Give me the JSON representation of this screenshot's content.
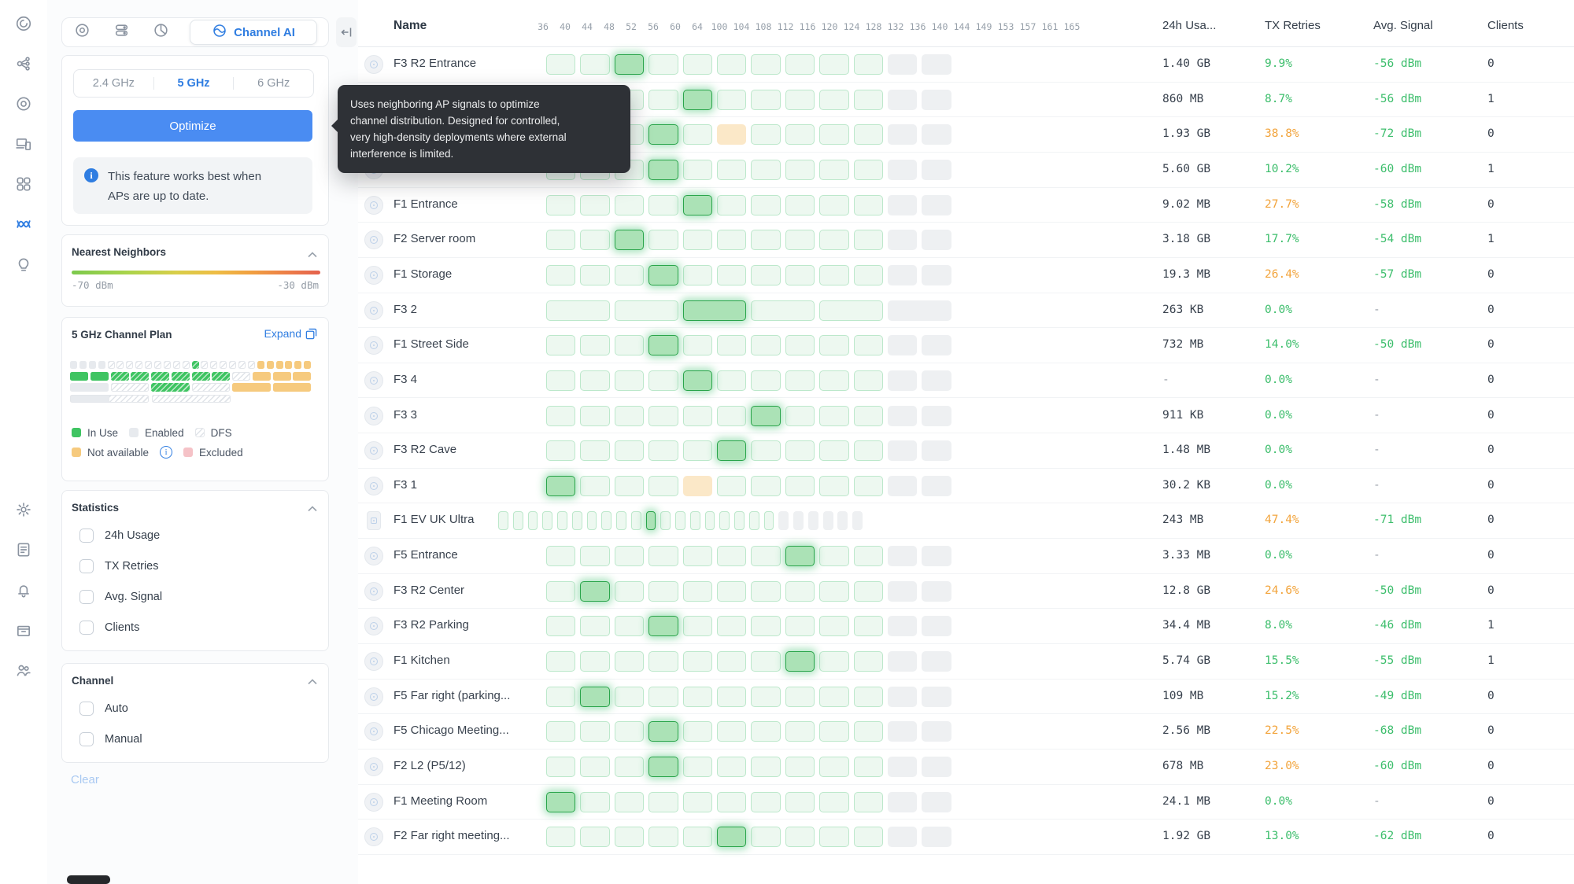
{
  "colors": {
    "accent": "#2f7de1",
    "optimize_button": "#4a8cf2",
    "green_text": "#3dbe6c",
    "orange_text": "#f2a43c",
    "cell_highlight_border": "#2aa54b",
    "cell_green_bg": "#edf8f0",
    "cell_gray_bg": "#eef0f2",
    "cell_orange_bg": "#fbe8c8",
    "tooltip_bg": "#2e3136"
  },
  "rail": {
    "top_icons": [
      "unifi-logo",
      "topology",
      "radio",
      "devices",
      "aps",
      "insights-wave",
      "lightbulb"
    ],
    "active_icon": "insights-wave",
    "bottom_icons": [
      "gear",
      "log-list",
      "bell",
      "archive-box",
      "people"
    ]
  },
  "sidebar": {
    "tabs": {
      "inactive_icons": [
        "target",
        "ap-list",
        "pie-chart"
      ],
      "active": {
        "icon": "channel-ai",
        "label": "Channel AI"
      }
    },
    "bands": [
      "2.4 GHz",
      "5 GHz",
      "6 GHz"
    ],
    "active_band": "5 GHz",
    "optimize_label": "Optimize",
    "info_lines": [
      "This feature works best when",
      "APs are up to date."
    ],
    "nearest_neighbors": {
      "title": "Nearest Neighbors",
      "min": "-70 dBm",
      "max": "-30 dBm"
    },
    "channel_plan": {
      "title": "5 GHz Channel Plan",
      "expand_label": "Expand",
      "rows": [
        [
          "en",
          "en",
          "en",
          "en",
          "hatch",
          "hatch",
          "hatch",
          "hatch",
          "hatch",
          "hatch",
          "hatch",
          "hatch",
          "hatch",
          "useh",
          "hatch",
          "hatch",
          "hatch",
          "hatch",
          "hatch",
          "hatch",
          "na",
          "na",
          "na",
          "na",
          "na",
          "na"
        ],
        [
          "use",
          "use",
          "useh",
          "useh",
          "useh",
          "useh",
          "useh",
          "useh",
          "hatch",
          "na",
          "na",
          "na"
        ],
        [
          "en",
          "hatch",
          "useh",
          "hatch",
          "na",
          "na"
        ],
        [
          "mixed",
          "hatch"
        ]
      ],
      "legend": [
        [
          {
            "type": "use",
            "label": "In Use"
          },
          {
            "type": "en",
            "label": "Enabled"
          },
          {
            "type": "hatch",
            "label": "DFS"
          }
        ],
        [
          {
            "type": "na",
            "label": "Not available",
            "info": true
          },
          {
            "type": "ex",
            "label": "Excluded"
          }
        ]
      ]
    },
    "statistics": {
      "title": "Statistics",
      "options": [
        "24h Usage",
        "TX Retries",
        "Avg. Signal",
        "Clients"
      ],
      "checked": [
        false,
        false,
        false,
        false
      ]
    },
    "channel": {
      "title": "Channel",
      "options": [
        "Auto",
        "Manual"
      ],
      "checked": [
        false,
        false
      ]
    },
    "clear_label": "Clear"
  },
  "tooltip": {
    "lines": [
      "Uses neighboring AP signals to optimize",
      "channel distribution. Designed for controlled,",
      "very high-density deployments where external",
      "interference is limited."
    ]
  },
  "table": {
    "name_header": "Name",
    "channels": [
      36,
      40,
      44,
      48,
      52,
      56,
      60,
      64,
      100,
      104,
      108,
      112,
      116,
      120,
      124,
      128,
      132,
      136,
      140,
      144,
      149,
      153,
      157,
      161,
      165
    ],
    "col_headers": [
      "24h Usa...",
      "TX Retries",
      "Avg. Signal",
      "Clients"
    ],
    "rows": [
      {
        "name": "F3 R2 Entrance",
        "icon": "circle",
        "cell_width_mhz": 40,
        "highlight_index": 2,
        "orange_index": null,
        "usage": "1.40 GB",
        "tx": "9.9%",
        "tx_color": "g",
        "signal": "-56 dBm",
        "clients": "0"
      },
      {
        "name": "",
        "icon": "circle",
        "cell_width_mhz": 40,
        "highlight_index": 4,
        "orange_index": null,
        "usage": "860 MB",
        "tx": "8.7%",
        "tx_color": "g",
        "signal": "-56 dBm",
        "clients": "1"
      },
      {
        "name": "",
        "icon": "circle",
        "cell_width_mhz": 40,
        "highlight_index": 3,
        "orange_index": 5,
        "usage": "1.93 GB",
        "tx": "38.8%",
        "tx_color": "o",
        "signal": "-72 dBm",
        "clients": "0"
      },
      {
        "name": "F2 Entrance",
        "icon": "circle",
        "cell_width_mhz": 40,
        "highlight_index": 3,
        "orange_index": null,
        "usage": "5.60 GB",
        "tx": "10.2%",
        "tx_color": "g",
        "signal": "-60 dBm",
        "clients": "1"
      },
      {
        "name": "F1 Entrance",
        "icon": "circle",
        "cell_width_mhz": 40,
        "highlight_index": 4,
        "orange_index": null,
        "usage": "9.02 MB",
        "tx": "27.7%",
        "tx_color": "o",
        "signal": "-58 dBm",
        "clients": "0"
      },
      {
        "name": "F2 Server room",
        "icon": "circle",
        "cell_width_mhz": 40,
        "highlight_index": 2,
        "orange_index": null,
        "usage": "3.18 GB",
        "tx": "17.7%",
        "tx_color": "g",
        "signal": "-54 dBm",
        "clients": "1"
      },
      {
        "name": "F1 Storage",
        "icon": "circle",
        "cell_width_mhz": 40,
        "highlight_index": 3,
        "orange_index": null,
        "usage": "19.3 MB",
        "tx": "26.4%",
        "tx_color": "o",
        "signal": "-57 dBm",
        "clients": "0"
      },
      {
        "name": "F3 2",
        "icon": "circle",
        "cell_width_mhz": 80,
        "highlight_index": 2,
        "orange_index": null,
        "usage": "263 KB",
        "tx": "0.0%",
        "tx_color": "g",
        "signal": "-",
        "clients": "0"
      },
      {
        "name": "F1 Street Side",
        "icon": "circle",
        "cell_width_mhz": 40,
        "highlight_index": 3,
        "orange_index": null,
        "usage": "732 MB",
        "tx": "14.0%",
        "tx_color": "g",
        "signal": "-50 dBm",
        "clients": "0"
      },
      {
        "name": "F3 4",
        "icon": "circle",
        "cell_width_mhz": 40,
        "highlight_index": 4,
        "orange_index": null,
        "usage": "-",
        "tx": "0.0%",
        "tx_color": "g",
        "signal": "-",
        "clients": "0"
      },
      {
        "name": "F3 3",
        "icon": "circle",
        "cell_width_mhz": 40,
        "highlight_index": 6,
        "orange_index": null,
        "usage": "911 KB",
        "tx": "0.0%",
        "tx_color": "g",
        "signal": "-",
        "clients": "0"
      },
      {
        "name": "F3 R2 Cave",
        "icon": "circle",
        "cell_width_mhz": 40,
        "highlight_index": 5,
        "orange_index": null,
        "usage": "1.48 MB",
        "tx": "0.0%",
        "tx_color": "g",
        "signal": "-",
        "clients": "0"
      },
      {
        "name": "F3 1",
        "icon": "circle",
        "cell_width_mhz": 40,
        "highlight_index": 0,
        "orange_index": 4,
        "usage": "30.2 KB",
        "tx": "0.0%",
        "tx_color": "g",
        "signal": "-",
        "clients": "0"
      },
      {
        "name": "F1 EV UK Ultra",
        "icon": "rect",
        "cell_width_mhz": 20,
        "highlight_index": 10,
        "orange_index": null,
        "usage": "243 MB",
        "tx": "47.4%",
        "tx_color": "o",
        "signal": "-71 dBm",
        "clients": "0"
      },
      {
        "name": "F5 Entrance",
        "icon": "circle",
        "cell_width_mhz": 40,
        "highlight_index": 7,
        "orange_index": null,
        "usage": "3.33 MB",
        "tx": "0.0%",
        "tx_color": "g",
        "signal": "-",
        "clients": "0"
      },
      {
        "name": "F3 R2 Center",
        "icon": "circle",
        "cell_width_mhz": 40,
        "highlight_index": 1,
        "orange_index": null,
        "usage": "12.8 GB",
        "tx": "24.6%",
        "tx_color": "o",
        "signal": "-50 dBm",
        "clients": "0"
      },
      {
        "name": "F3 R2 Parking",
        "icon": "circle",
        "cell_width_mhz": 40,
        "highlight_index": 3,
        "orange_index": null,
        "usage": "34.4 MB",
        "tx": "8.0%",
        "tx_color": "g",
        "signal": "-46 dBm",
        "clients": "1"
      },
      {
        "name": "F1 Kitchen",
        "icon": "circle",
        "cell_width_mhz": 40,
        "highlight_index": 7,
        "orange_index": null,
        "usage": "5.74 GB",
        "tx": "15.5%",
        "tx_color": "g",
        "signal": "-55 dBm",
        "clients": "1"
      },
      {
        "name": "F5 Far right (parking...",
        "icon": "circle",
        "cell_width_mhz": 40,
        "highlight_index": 1,
        "orange_index": null,
        "usage": "109 MB",
        "tx": "15.2%",
        "tx_color": "g",
        "signal": "-49 dBm",
        "clients": "0"
      },
      {
        "name": "F5 Chicago Meeting...",
        "icon": "circle",
        "cell_width_mhz": 40,
        "highlight_index": 3,
        "orange_index": null,
        "usage": "2.56 MB",
        "tx": "22.5%",
        "tx_color": "o",
        "signal": "-68 dBm",
        "clients": "0"
      },
      {
        "name": "F2 L2 (P5/12)",
        "icon": "circle",
        "cell_width_mhz": 40,
        "highlight_index": 3,
        "orange_index": null,
        "usage": "678 MB",
        "tx": "23.0%",
        "tx_color": "o",
        "signal": "-60 dBm",
        "clients": "0"
      },
      {
        "name": "F1 Meeting Room",
        "icon": "circle",
        "cell_width_mhz": 40,
        "highlight_index": 0,
        "orange_index": null,
        "usage": "24.1 MB",
        "tx": "0.0%",
        "tx_color": "g",
        "signal": "-",
        "clients": "0"
      },
      {
        "name": "F2 Far right meeting...",
        "icon": "circle",
        "cell_width_mhz": 40,
        "highlight_index": 5,
        "orange_index": null,
        "usage": "1.92 GB",
        "tx": "13.0%",
        "tx_color": "g",
        "signal": "-62 dBm",
        "clients": "0"
      }
    ]
  }
}
